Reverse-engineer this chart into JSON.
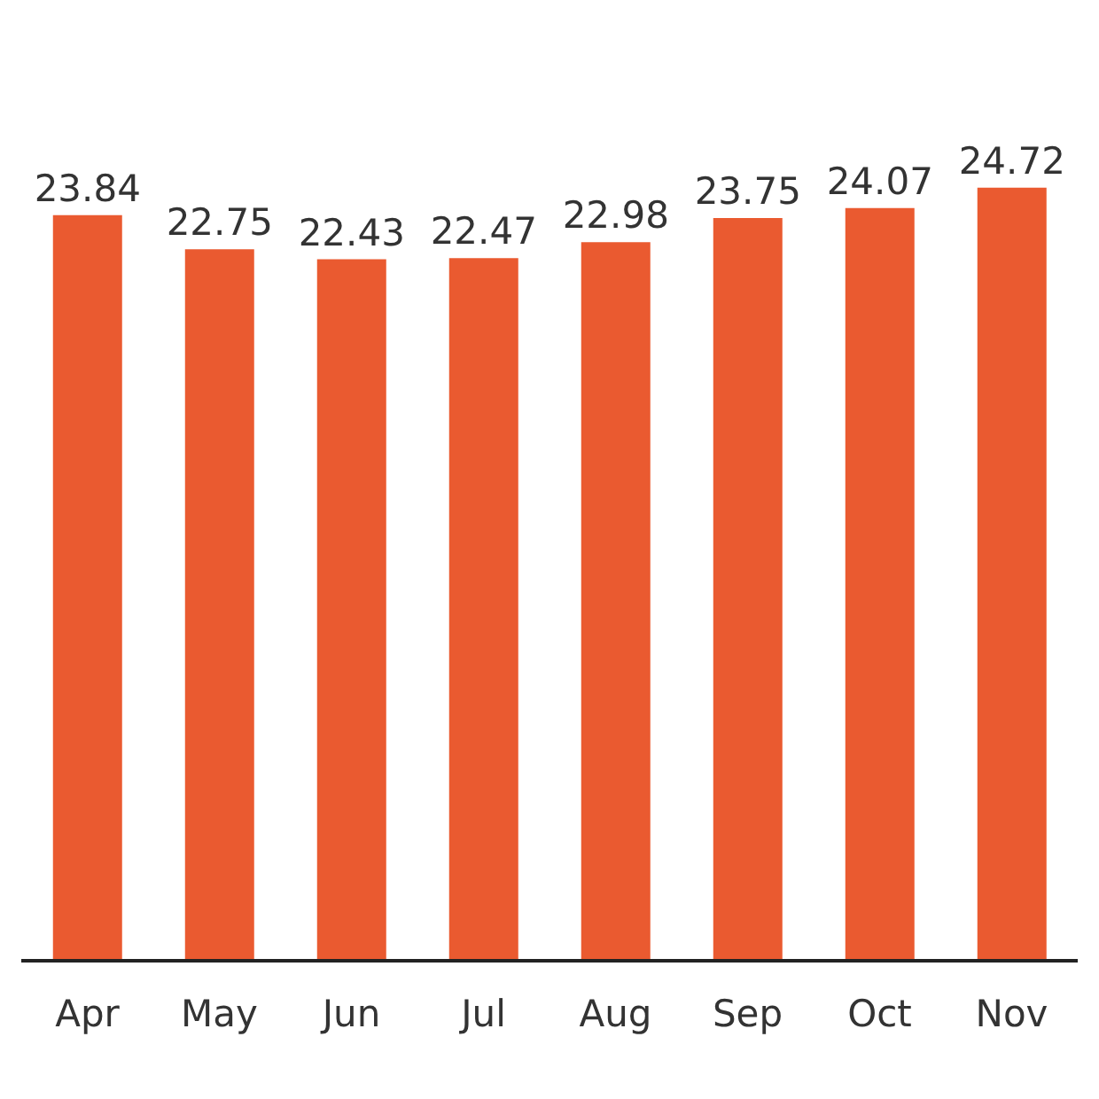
{
  "chart_data": {
    "type": "bar",
    "categories": [
      "Apr",
      "May",
      "Jun",
      "Jul",
      "Aug",
      "Sep",
      "Oct",
      "Nov"
    ],
    "values": [
      23.84,
      22.75,
      22.43,
      22.47,
      22.98,
      23.75,
      24.07,
      24.72
    ],
    "color": "#ea5a30",
    "tick_labels": "x",
    "data_labels": true
  }
}
